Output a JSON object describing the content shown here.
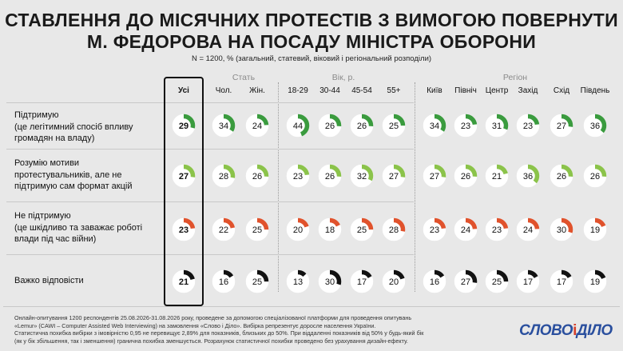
{
  "title_line1": "СТАВЛЕННЯ ДО МІСЯЧНИХ ПРОТЕСТІВ З ВИМОГОЮ ПОВЕРНУТИ",
  "title_line2": "М. ФЕДОРОВА НА ПОСАДУ МІНІСТРА ОБОРОНИ",
  "subtitle": "N = 1200, % (загальний, статевий, віковий і регіональний розподіли)",
  "groups": {
    "sex": "Стать",
    "age": "Вік, р.",
    "region": "Регіон"
  },
  "footer": {
    "line1": "Онлайн-опитування 1200 респондентів 25.08.2026-31.08.2026 року, проведене за допомогою спеціалізованої платформи для проведення опитувань",
    "line2": "«Lemur» (CAWI – Computer Assisted Web Interviewing) на замовлення «Слово і Діло». Вибірка репрезентує доросле населення України.",
    "line3": "Статистична похибка вибірки з імовірністю 0,95 не перевищує 2,89% для показників, близьких до 50%. При віддаленні показників від 50% у будь-який бік",
    "line4": "(як у бік збільшення, так і зменшення) гранична похибка зменшується. Розрахунок статистичної похибки проведено без урахування дизайн-ефекту."
  },
  "logo": {
    "left": "СЛОВО",
    "amp": "і",
    "right": "ДІЛО"
  },
  "chart_data": {
    "type": "donut-grid",
    "title": "СТАВЛЕННЯ ДО МІСЯЧНИХ ПРОТЕСТІВ З ВИМОГОЮ ПОВЕРНУТИ М. ФЕДОРОВА НА ПОСАДУ МІНІСТРА ОБОРОНИ",
    "columns": [
      "Усі",
      "Чол.",
      "Жін.",
      "18-29",
      "30-44",
      "45-54",
      "55+",
      "Київ",
      "Північ",
      "Центр",
      "Захід",
      "Схід",
      "Південь"
    ],
    "rows": [
      {
        "label_lines": [
          "Підтримую",
          "(це легітимний спосіб впливу",
          "громадян на владу)"
        ],
        "color": "#3a9b3e",
        "values": [
          29,
          34,
          24,
          44,
          26,
          26,
          25,
          34,
          23,
          31,
          23,
          27,
          36
        ]
      },
      {
        "label_lines": [
          "Розумію мотиви",
          "протестувальників, але не",
          "підтримую сам формат акцій"
        ],
        "color": "#8bc34a",
        "values": [
          27,
          28,
          26,
          23,
          26,
          32,
          27,
          27,
          26,
          21,
          36,
          26,
          26
        ]
      },
      {
        "label_lines": [
          "Не підтримую",
          "(це шкідливо та заважає роботі",
          "влади під час війни)"
        ],
        "color": "#e0522c",
        "values": [
          23,
          22,
          25,
          20,
          18,
          25,
          28,
          23,
          24,
          23,
          24,
          30,
          19
        ]
      },
      {
        "label_lines": [
          "Важко відповісти"
        ],
        "color": "#111111",
        "values": [
          21,
          16,
          25,
          13,
          30,
          17,
          20,
          16,
          27,
          25,
          17,
          17,
          19
        ]
      }
    ]
  }
}
